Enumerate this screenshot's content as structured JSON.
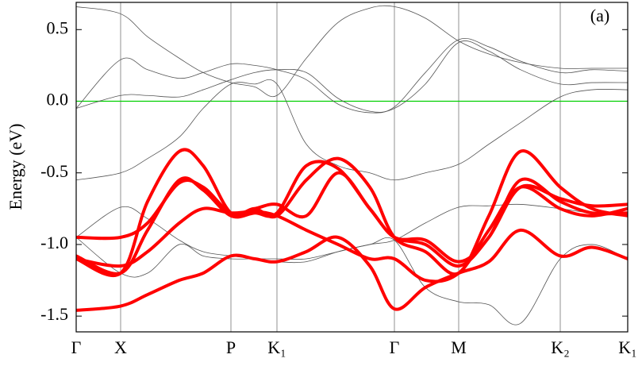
{
  "chart_data": {
    "type": "line",
    "ylabel": "Energy (eV)",
    "annotation": "(a)",
    "xlim": [
      0,
      6.95
    ],
    "ylim": [
      -1.61,
      0.69
    ],
    "xticks": [
      {
        "value": 0,
        "label": "Γ"
      },
      {
        "value": 0.56,
        "label": "X"
      },
      {
        "value": 1.95,
        "label": "P"
      },
      {
        "value": 2.53,
        "label": "K₁"
      },
      {
        "value": 4.01,
        "label": "Γ"
      },
      {
        "value": 4.82,
        "label": "M"
      },
      {
        "value": 6.1,
        "label": "K₂"
      },
      {
        "value": 6.95,
        "label": "K₁"
      }
    ],
    "yticks": [
      0.5,
      {
        "value": 0,
        "label": "0.0"
      },
      -0.5,
      {
        "value": -1,
        "label": "-1.0"
      },
      -1.5
    ],
    "grid_x": true,
    "reference_line": {
      "value": 0,
      "color": "#00d000"
    },
    "x": [
      0,
      0.56,
      0.9,
      1.3,
      1.6,
      1.95,
      2.25,
      2.53,
      2.9,
      3.3,
      3.7,
      4.01,
      4.4,
      4.82,
      5.2,
      5.6,
      6.1,
      6.5,
      6.95
    ],
    "series": [
      {
        "color": "#555555",
        "linewidth": 0.8,
        "values": [
          0.66,
          0.61,
          0.45,
          0.3,
          0.2,
          0.13,
          0.1,
          0.04,
          0.3,
          0.55,
          0.65,
          0.66,
          0.58,
          0.42,
          0.33,
          0.27,
          0.23,
          0.23,
          0.23
        ]
      },
      {
        "color": "#555555",
        "linewidth": 0.8,
        "values": [
          -0.05,
          0.29,
          0.22,
          0.16,
          0.2,
          0.26,
          0.25,
          0.22,
          0.15,
          -0.02,
          -0.08,
          -0.04,
          0.2,
          0.43,
          0.38,
          0.28,
          0.2,
          0.22,
          0.21
        ]
      },
      {
        "color": "#555555",
        "linewidth": 0.8,
        "values": [
          -0.05,
          0.04,
          0.04,
          0.03,
          0.08,
          0.15,
          0.2,
          0.22,
          0.2,
          0.02,
          -0.07,
          -0.05,
          0.12,
          0.41,
          0.35,
          0.22,
          0.12,
          0.13,
          0.13
        ]
      },
      {
        "color": "#555555",
        "linewidth": 0.8,
        "values": [
          -0.55,
          -0.5,
          -0.4,
          -0.25,
          -0.05,
          0.12,
          0.12,
          0.12,
          -0.3,
          -0.45,
          -0.5,
          -0.55,
          -0.5,
          -0.44,
          -0.3,
          -0.15,
          0.03,
          0.08,
          0.08
        ]
      },
      {
        "color": "#555555",
        "linewidth": 0.8,
        "values": [
          -0.95,
          -0.74,
          -0.82,
          -0.97,
          -1.05,
          -1.08,
          -1.1,
          -1.12,
          -1.12,
          -1.05,
          -1,
          -0.97,
          -0.85,
          -0.74,
          -0.73,
          -0.72,
          -0.75,
          -0.78,
          -0.78
        ]
      },
      {
        "color": "#555555",
        "linewidth": 0.8,
        "values": [
          -0.95,
          -1.2,
          -1.2,
          -1,
          -1.08,
          -1.1,
          -1.1,
          -1.1,
          -1.1,
          -1.05,
          -1,
          -0.97,
          -1.3,
          -1.4,
          -1.42,
          -1.55,
          -1.1,
          -1,
          -1.1
        ]
      },
      {
        "color": "#ff0000",
        "linewidth": 4,
        "values": [
          -1.46,
          -1.43,
          -1.35,
          -1.25,
          -1.2,
          -1.08,
          -1.1,
          -1.12,
          -1.05,
          -0.95,
          -1.15,
          -1.45,
          -1.3,
          -1.2,
          -1.12,
          -0.9,
          -1.08,
          -1.02,
          -1.1
        ]
      },
      {
        "color": "#ff0000",
        "linewidth": 4,
        "values": [
          -1.1,
          -1.15,
          -1.05,
          -0.85,
          -0.75,
          -0.78,
          -0.77,
          -0.8,
          -0.9,
          -1,
          -1.1,
          -1.1,
          -1.25,
          -1.2,
          -0.9,
          -0.6,
          -0.75,
          -0.8,
          -0.75
        ]
      },
      {
        "color": "#ff0000",
        "linewidth": 4,
        "values": [
          -0.95,
          -0.95,
          -0.85,
          -0.57,
          -0.6,
          -0.78,
          -0.75,
          -0.72,
          -0.8,
          -0.5,
          -0.75,
          -0.95,
          -0.97,
          -1.12,
          -0.95,
          -0.55,
          -0.7,
          -0.78,
          -0.78
        ]
      },
      {
        "color": "#ff0000",
        "linewidth": 4,
        "values": [
          -1.08,
          -1.2,
          -0.9,
          -0.55,
          -0.62,
          -0.8,
          -0.78,
          -0.78,
          -0.45,
          -0.47,
          -0.75,
          -0.95,
          -1,
          -1.15,
          -0.95,
          -0.6,
          -0.68,
          -0.73,
          -0.72
        ]
      },
      {
        "color": "#ff0000",
        "linewidth": 4,
        "values": [
          -1.1,
          -1.2,
          -0.7,
          -0.35,
          -0.45,
          -0.78,
          -0.75,
          -0.8,
          -0.55,
          -0.4,
          -0.6,
          -0.95,
          -1.05,
          -1.2,
          -0.8,
          -0.35,
          -0.6,
          -0.75,
          -0.8
        ]
      }
    ]
  }
}
